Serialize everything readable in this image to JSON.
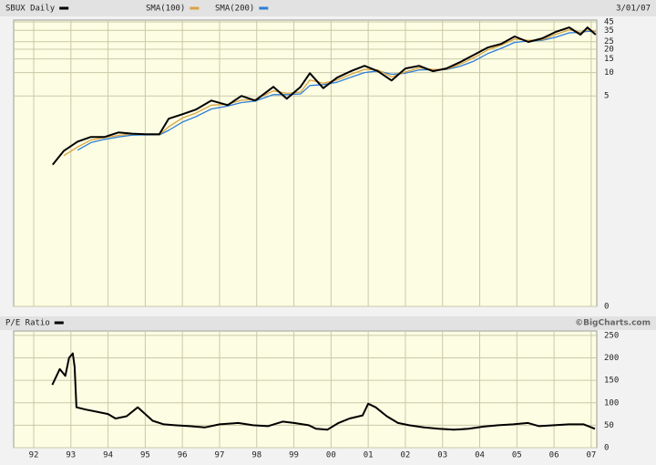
{
  "chart_data": [
    {
      "type": "line",
      "log_scale": true,
      "grid": true,
      "title": "SBUX Daily",
      "date": "3/01/07",
      "x": [
        1992.51,
        1992.81,
        1993.18,
        1993.54,
        1993.91,
        1994.28,
        1994.65,
        1995.01,
        1995.38,
        1995.63,
        1996.0,
        1996.36,
        1996.78,
        1997.22,
        1997.59,
        1997.96,
        1998.45,
        1998.81,
        1999.18,
        1999.43,
        1999.79,
        2000.16,
        2000.53,
        2000.9,
        2001.26,
        2001.63,
        2002.0,
        2002.37,
        2002.74,
        2003.1,
        2003.47,
        2003.84,
        2004.21,
        2004.57,
        2004.94,
        2005.31,
        2005.68,
        2006.04,
        2006.41,
        2006.71,
        2006.9,
        2007.12
      ],
      "series": [
        {
          "name": "SBUX Daily",
          "color": "#000000",
          "values": [
            0.65,
            0.98,
            1.29,
            1.48,
            1.48,
            1.69,
            1.63,
            1.6,
            1.6,
            2.54,
            2.9,
            3.33,
            4.36,
            3.8,
            5.0,
            4.36,
            6.56,
            4.6,
            6.56,
            9.8,
            6.3,
            8.6,
            10.4,
            12.2,
            10.4,
            7.9,
            11.3,
            12.2,
            10.4,
            11.3,
            13.6,
            16.9,
            21,
            23.4,
            29.2,
            24.8,
            27.6,
            33.3,
            38.2,
            30.8,
            38.2,
            30.8
          ]
        },
        {
          "name": "SMA(100)",
          "color": "#d9a441",
          "values": [
            null,
            0.85,
            1.1,
            1.35,
            1.45,
            1.55,
            1.62,
            1.6,
            1.58,
            2.0,
            2.6,
            3.0,
            3.8,
            3.9,
            4.4,
            4.5,
            5.8,
            5.4,
            5.6,
            8.0,
            7.3,
            8.0,
            9.5,
            11.0,
            10.8,
            8.8,
            10.2,
            11.5,
            11.0,
            11.0,
            12.8,
            15.5,
            19.5,
            22.5,
            27.0,
            26.0,
            26.5,
            31.0,
            35.5,
            33.0,
            35.5,
            33.5
          ]
        },
        {
          "name": "SMA(200)",
          "color": "#2f7fd6",
          "values": [
            null,
            null,
            1.0,
            1.25,
            1.38,
            1.48,
            1.56,
            1.58,
            1.57,
            1.8,
            2.3,
            2.7,
            3.4,
            3.7,
            4.1,
            4.3,
            5.2,
            5.2,
            5.3,
            6.8,
            7.0,
            7.5,
            8.7,
            10.0,
            10.5,
            9.5,
            9.8,
            10.8,
            10.9,
            10.9,
            12.0,
            14.0,
            17.5,
            20.5,
            24.5,
            25.5,
            26.0,
            28.5,
            32.5,
            33.0,
            34.0,
            34.0
          ]
        }
      ],
      "xlim": [
        1991.46,
        2007.15
      ],
      "ylim": [
        0.0097,
        47.5
      ],
      "yticks": [
        45,
        35,
        25,
        20,
        15,
        10,
        5,
        {
          "value": 0.0097,
          "label": "0"
        }
      ]
    },
    {
      "type": "line",
      "grid": true,
      "credit": "©BigCharts.com",
      "x": [
        1992.5,
        1992.7,
        1992.85,
        1992.95,
        1993.05,
        1993.1,
        1993.15,
        1993.4,
        1993.7,
        1994.0,
        1994.2,
        1994.5,
        1994.8,
        1995.0,
        1995.2,
        1995.5,
        1995.8,
        1996.2,
        1996.6,
        1997.0,
        1997.5,
        1997.9,
        1998.3,
        1998.7,
        1999.0,
        1999.4,
        1999.6,
        1999.9,
        2000.2,
        2000.5,
        2000.85,
        2001.0,
        2001.2,
        2001.5,
        2001.8,
        2002.1,
        2002.5,
        2002.9,
        2003.3,
        2003.7,
        2004.1,
        2004.5,
        2004.9,
        2005.3,
        2005.6,
        2006.0,
        2006.4,
        2006.8,
        2007.1
      ],
      "series": [
        {
          "name": "P/E Ratio",
          "color": "#000000",
          "values": [
            140,
            175,
            160,
            200,
            210,
            180,
            90,
            85,
            80,
            75,
            65,
            70,
            90,
            75,
            60,
            52,
            50,
            48,
            45,
            52,
            55,
            50,
            48,
            58,
            55,
            50,
            42,
            40,
            55,
            65,
            72,
            98,
            90,
            70,
            55,
            50,
            45,
            42,
            40,
            42,
            47,
            50,
            52,
            55,
            48,
            50,
            52,
            52,
            42
          ]
        }
      ],
      "xlim": [
        1991.46,
        2007.15
      ],
      "xticks": [
        {
          "value": 1992,
          "label": "92"
        },
        {
          "value": 1993,
          "label": "93"
        },
        {
          "value": 1994,
          "label": "94"
        },
        {
          "value": 1995,
          "label": "95"
        },
        {
          "value": 1996,
          "label": "96"
        },
        {
          "value": 1997,
          "label": "97"
        },
        {
          "value": 1998,
          "label": "98"
        },
        {
          "value": 1999,
          "label": "99"
        },
        {
          "value": 2000,
          "label": "00"
        },
        {
          "value": 2001,
          "label": "01"
        },
        {
          "value": 2002,
          "label": "02"
        },
        {
          "value": 2003,
          "label": "03"
        },
        {
          "value": 2004,
          "label": "04"
        },
        {
          "value": 2005,
          "label": "05"
        },
        {
          "value": 2006,
          "label": "06"
        },
        {
          "value": 2007,
          "label": "07"
        }
      ],
      "ylim": [
        0,
        260
      ],
      "yticks": [
        250,
        200,
        150,
        100,
        50,
        0
      ]
    }
  ]
}
